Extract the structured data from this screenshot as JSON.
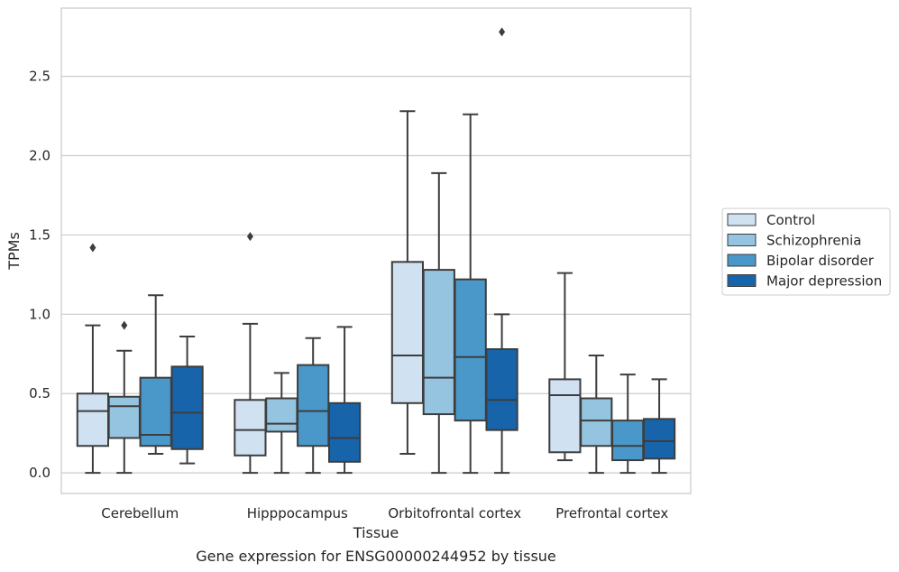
{
  "chart_data": {
    "type": "boxplot",
    "title": "Gene expression for ENSG00000244952 by tissue",
    "xlabel": "Tissue",
    "ylabel": "TPMs",
    "ylim": [
      -0.13,
      2.93
    ],
    "yticks": [
      0.0,
      0.5,
      1.0,
      1.5,
      2.0,
      2.5
    ],
    "ytick_labels": [
      "0.0",
      "0.5",
      "1.0",
      "1.5",
      "2.0",
      "2.5"
    ],
    "grid": true,
    "legend_position": "right",
    "categories": [
      "Cerebellum",
      "Hipppocampus",
      "Orbitofrontal cortex",
      "Prefrontal cortex"
    ],
    "series": [
      {
        "name": "Control",
        "color": "#d0e1f2",
        "boxes": [
          {
            "whislo": 0.0,
            "q1": 0.17,
            "med": 0.39,
            "q3": 0.5,
            "whishi": 0.93,
            "fliers": [
              1.42
            ]
          },
          {
            "whislo": 0.0,
            "q1": 0.11,
            "med": 0.27,
            "q3": 0.46,
            "whishi": 0.94,
            "fliers": [
              1.49
            ]
          },
          {
            "whislo": 0.12,
            "q1": 0.44,
            "med": 0.74,
            "q3": 1.33,
            "whishi": 2.28,
            "fliers": []
          },
          {
            "whislo": 0.08,
            "q1": 0.13,
            "med": 0.49,
            "q3": 0.59,
            "whishi": 1.26,
            "fliers": []
          }
        ]
      },
      {
        "name": "Schizophrenia",
        "color": "#94c4df",
        "boxes": [
          {
            "whislo": 0.0,
            "q1": 0.22,
            "med": 0.42,
            "q3": 0.48,
            "whishi": 0.77,
            "fliers": [
              0.93
            ]
          },
          {
            "whislo": 0.0,
            "q1": 0.26,
            "med": 0.31,
            "q3": 0.47,
            "whishi": 0.63,
            "fliers": []
          },
          {
            "whislo": 0.0,
            "q1": 0.37,
            "med": 0.6,
            "q3": 1.28,
            "whishi": 1.89,
            "fliers": []
          },
          {
            "whislo": 0.0,
            "q1": 0.17,
            "med": 0.33,
            "q3": 0.47,
            "whishi": 0.74,
            "fliers": []
          }
        ]
      },
      {
        "name": "Bipolar disorder",
        "color": "#4a98c9",
        "boxes": [
          {
            "whislo": 0.12,
            "q1": 0.17,
            "med": 0.24,
            "q3": 0.6,
            "whishi": 1.12,
            "fliers": []
          },
          {
            "whislo": 0.0,
            "q1": 0.17,
            "med": 0.39,
            "q3": 0.68,
            "whishi": 0.85,
            "fliers": []
          },
          {
            "whislo": 0.0,
            "q1": 0.33,
            "med": 0.73,
            "q3": 1.22,
            "whishi": 2.26,
            "fliers": []
          },
          {
            "whislo": 0.0,
            "q1": 0.08,
            "med": 0.17,
            "q3": 0.33,
            "whishi": 0.62,
            "fliers": []
          }
        ]
      },
      {
        "name": "Major depression",
        "color": "#1764ab",
        "boxes": [
          {
            "whislo": 0.06,
            "q1": 0.15,
            "med": 0.38,
            "q3": 0.67,
            "whishi": 0.86,
            "fliers": []
          },
          {
            "whislo": 0.0,
            "q1": 0.07,
            "med": 0.22,
            "q3": 0.44,
            "whishi": 0.92,
            "fliers": []
          },
          {
            "whislo": 0.0,
            "q1": 0.27,
            "med": 0.46,
            "q3": 0.78,
            "whishi": 1.0,
            "fliers": [
              2.78
            ]
          },
          {
            "whislo": 0.0,
            "q1": 0.09,
            "med": 0.2,
            "q3": 0.34,
            "whishi": 0.59,
            "fliers": []
          }
        ]
      }
    ]
  }
}
